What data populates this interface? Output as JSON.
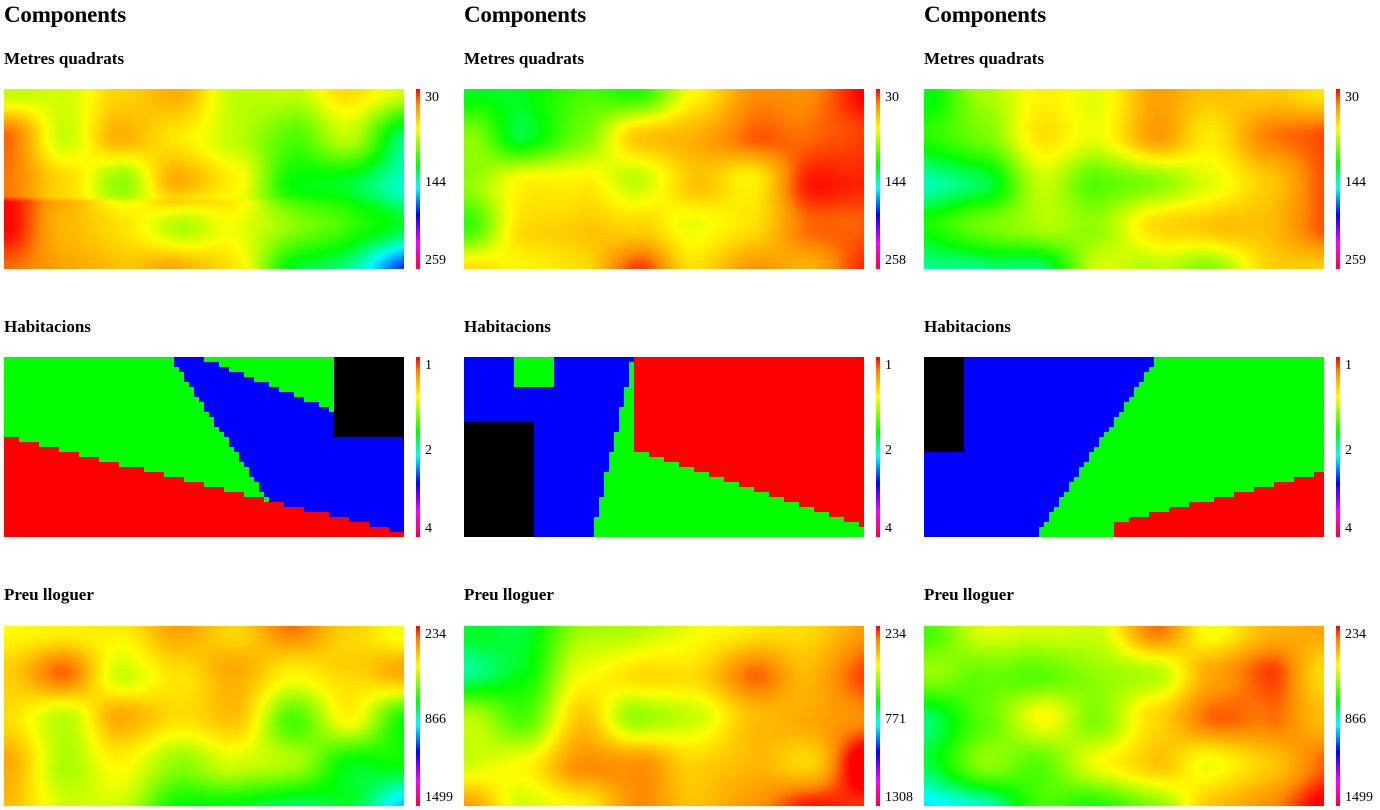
{
  "columns": [
    {
      "title": "Components",
      "panels": [
        {
          "label": "Metres quadrats",
          "scale": [
            "30",
            "144",
            "259"
          ],
          "pattern": "m1",
          "seed": 11
        },
        {
          "label": "Habitacions",
          "scale": [
            "1",
            "2",
            "4"
          ],
          "pattern": "h1",
          "seed": 12
        },
        {
          "label": "Preu lloguer",
          "scale": [
            "234",
            "866",
            "1499"
          ],
          "pattern": "p1",
          "seed": 13
        }
      ]
    },
    {
      "title": "Components",
      "panels": [
        {
          "label": "Metres quadrats",
          "scale": [
            "30",
            "144",
            "258"
          ],
          "pattern": "m2",
          "seed": 21
        },
        {
          "label": "Habitacions",
          "scale": [
            "1",
            "2",
            "4"
          ],
          "pattern": "h2",
          "seed": 22
        },
        {
          "label": "Preu lloguer",
          "scale": [
            "234",
            "771",
            "1308"
          ],
          "pattern": "p2",
          "seed": 23
        }
      ]
    },
    {
      "title": "Components",
      "panels": [
        {
          "label": "Metres quadrats",
          "scale": [
            "30",
            "144",
            "259"
          ],
          "pattern": "m3",
          "seed": 31
        },
        {
          "label": "Habitacions",
          "scale": [
            "1",
            "2",
            "4"
          ],
          "pattern": "h3",
          "seed": 32
        },
        {
          "label": "Preu lloguer",
          "scale": [
            "234",
            "866",
            "1499"
          ],
          "pattern": "p3",
          "seed": 33
        }
      ]
    }
  ]
}
